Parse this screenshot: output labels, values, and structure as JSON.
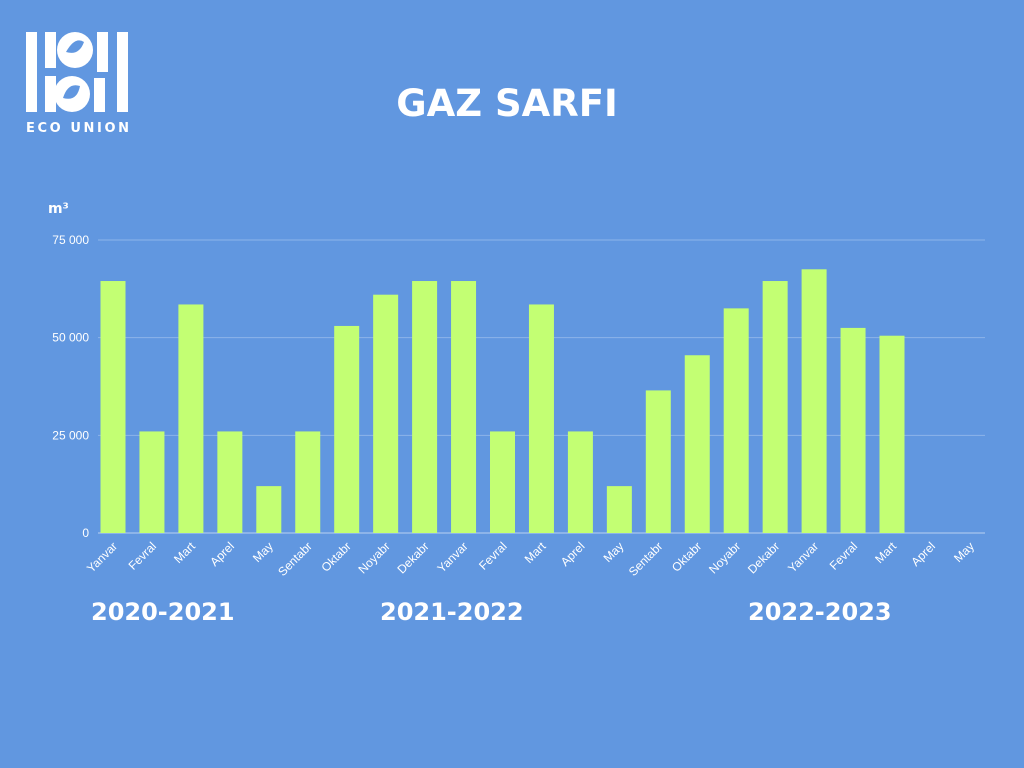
{
  "brand": {
    "name": "ECO UNION"
  },
  "colors": {
    "background": "#6197e0",
    "bar": "#c3ff73",
    "text": "#ffffff",
    "grid": "#8db4ea"
  },
  "seasons": [
    "2020-2021",
    "2021-2022",
    "2022-2023"
  ],
  "chart_data": {
    "type": "bar",
    "title": "GAZ SARFI",
    "ylabel": "m³",
    "xlabel": "",
    "ylim": [
      0,
      75000
    ],
    "yticks": [
      0,
      25000,
      50000,
      75000
    ],
    "ytick_labels": [
      "0",
      "25 000",
      "50 000",
      "75 000"
    ],
    "grid": true,
    "categories": [
      "Yanvar",
      "Fevral",
      "Mart",
      "Aprel",
      "May",
      "Sentabr",
      "Oktabr",
      "Noyabr",
      "Dekabr",
      "Yanvar",
      "Fevral",
      "Mart",
      "Aprel",
      "May",
      "Sentabr",
      "Oktabr",
      "Noyabr",
      "Dekabr",
      "Yanvar",
      "Fevral",
      "Mart",
      "Aprel",
      "May"
    ],
    "values": [
      64500,
      26000,
      58500,
      26000,
      12000,
      26000,
      53000,
      61000,
      64500,
      64500,
      26000,
      58500,
      26000,
      12000,
      36500,
      45500,
      57500,
      64500,
      67500,
      52500,
      50500,
      null,
      null
    ]
  }
}
